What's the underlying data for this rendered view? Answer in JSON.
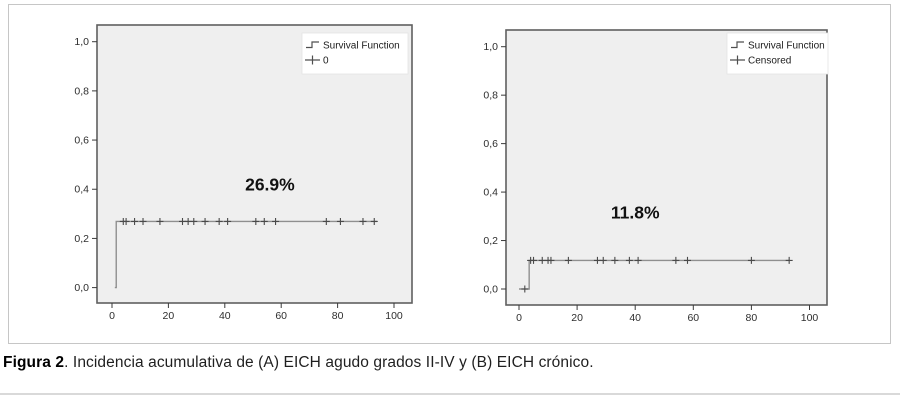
{
  "figure": {
    "caption": {
      "label": "Figura 2",
      "text": ". Incidencia acumulativa de (A) EICH agudo grados II-IV y (B) EICH crónico."
    }
  },
  "colors": {
    "plot_bg": "#efefef",
    "plot_border": "#5f5f5f",
    "curve": "#8f8f8f",
    "censor": "#4a4a4a",
    "tick_text": "#2e2e2e",
    "annotation_text": "#111111",
    "legend_bg": "#ffffff",
    "legend_text": "#1c1c1c",
    "figure_border": "#c6c6c6",
    "divider": "#d9d9d9"
  },
  "chart_data": [
    {
      "type": "line",
      "subtype": "cumulative-incidence-step",
      "panel": "A",
      "description": "Incidencia acumulativa de EICH agudo grados II-IV",
      "legend": {
        "position": "top-right",
        "entries": [
          {
            "glyph": "step-line",
            "label": "Survival Function"
          },
          {
            "glyph": "plus",
            "label": "0"
          }
        ]
      },
      "x_ticks": [
        0,
        20,
        40,
        60,
        80,
        100
      ],
      "y_tick_values": [
        0.0,
        0.2,
        0.4,
        0.6,
        0.8,
        1.0
      ],
      "y_tick_labels": [
        "0,0",
        "0,2",
        "0,4",
        "0,6",
        "0,8",
        "1,0"
      ],
      "xlim": [
        -5.3,
        106.4
      ],
      "ylim": [
        -0.063,
        1.068
      ],
      "grid": false,
      "plateau_value": 0.269,
      "steps": [
        [
          1,
          0
        ],
        [
          1.5,
          0
        ],
        [
          1.5,
          0.269
        ],
        [
          94,
          0.269
        ]
      ],
      "censor_marks": [
        [
          4,
          0.269
        ],
        [
          5,
          0.269
        ],
        [
          8,
          0.269
        ],
        [
          11,
          0.269
        ],
        [
          17,
          0.269
        ],
        [
          25,
          0.269
        ],
        [
          27,
          0.269
        ],
        [
          29,
          0.269
        ],
        [
          33,
          0.269
        ],
        [
          38,
          0.269
        ],
        [
          41,
          0.269
        ],
        [
          51,
          0.269
        ],
        [
          54,
          0.269
        ],
        [
          58,
          0.269
        ],
        [
          76,
          0.269
        ],
        [
          81,
          0.269
        ],
        [
          89,
          0.269
        ],
        [
          93,
          0.269
        ]
      ],
      "annotation": {
        "text": "26.9%",
        "x": 56,
        "y": 0.42
      }
    },
    {
      "type": "line",
      "subtype": "cumulative-incidence-step",
      "panel": "B",
      "description": "Incidencia acumulativa de EICH crónico",
      "legend": {
        "position": "top-right",
        "entries": [
          {
            "glyph": "step-line",
            "label": "Survival Function"
          },
          {
            "glyph": "plus",
            "label": "Censored"
          }
        ]
      },
      "x_ticks": [
        0,
        20,
        40,
        60,
        80,
        100
      ],
      "y_tick_values": [
        0.0,
        0.2,
        0.4,
        0.6,
        0.8,
        1.0
      ],
      "y_tick_labels": [
        "0,0",
        "0,2",
        "0,4",
        "0,6",
        "0,8",
        "1,0"
      ],
      "xlim": [
        -4.5,
        106.0
      ],
      "ylim": [
        -0.066,
        1.07
      ],
      "grid": false,
      "plateau_value": 0.118,
      "steps": [
        [
          0,
          0
        ],
        [
          3.5,
          0
        ],
        [
          3.5,
          0.118
        ],
        [
          93,
          0.118
        ]
      ],
      "censor_marks": [
        [
          2,
          0
        ],
        [
          4,
          0.118
        ],
        [
          5,
          0.118
        ],
        [
          8,
          0.118
        ],
        [
          10,
          0.118
        ],
        [
          11,
          0.118
        ],
        [
          17,
          0.118
        ],
        [
          27,
          0.118
        ],
        [
          29,
          0.118
        ],
        [
          33,
          0.118
        ],
        [
          38,
          0.118
        ],
        [
          41,
          0.118
        ],
        [
          54,
          0.118
        ],
        [
          58,
          0.118
        ],
        [
          80,
          0.118
        ],
        [
          93,
          0.118
        ]
      ],
      "annotation": {
        "text": "11.8%",
        "x": 40,
        "y": 0.315
      }
    }
  ]
}
